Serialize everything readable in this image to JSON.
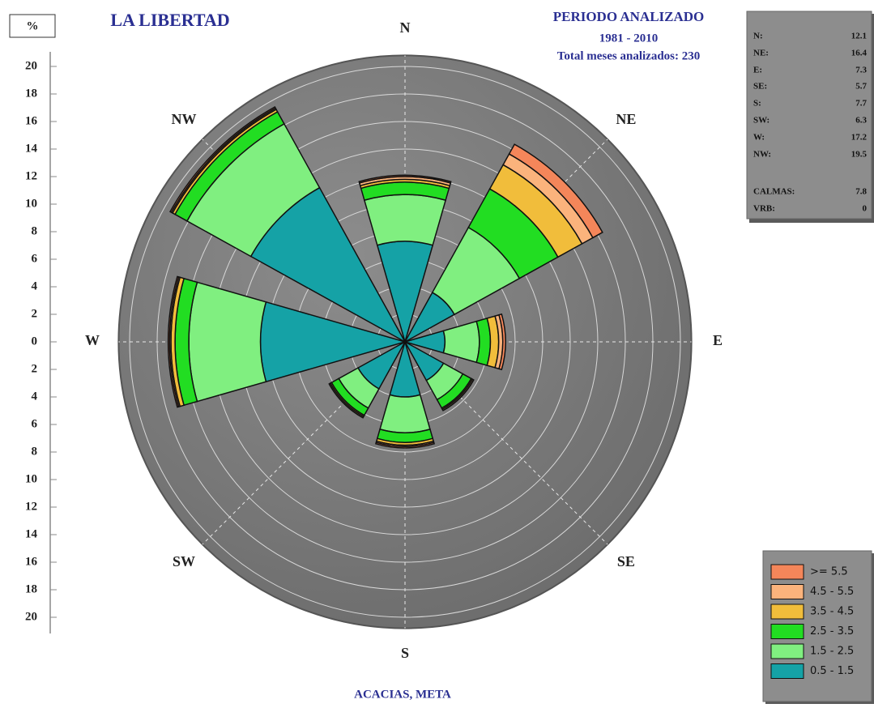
{
  "chart_data": {
    "type": "windrose",
    "unit_label": "%",
    "title": "LA LIBERTAD",
    "period_title": "PERIODO ANALIZADO",
    "period": "1981 - 2010",
    "months_note": "Total meses analizados: 230",
    "footer": "ACACIAS, META",
    "categories": [
      "N",
      "NE",
      "E",
      "SE",
      "S",
      "SW",
      "W",
      "NW"
    ],
    "angles": [
      0,
      45,
      90,
      135,
      180,
      225,
      270,
      315
    ],
    "series": [
      {
        "name": "0.5 - 1.5",
        "color": "#15a2a6",
        "values": [
          7.3,
          4.1,
          2.9,
          3.2,
          4.0,
          3.9,
          10.5,
          12.8
        ]
      },
      {
        "name": "1.5 - 2.5",
        "color": "#80ef80",
        "values": [
          3.4,
          5.4,
          2.5,
          1.6,
          2.6,
          1.6,
          5.2,
          5.3
        ]
      },
      {
        "name": "2.5 - 3.5",
        "color": "#22dd22",
        "values": [
          0.9,
          3.2,
          0.8,
          0.7,
          0.7,
          0.6,
          1.0,
          1.0
        ]
      },
      {
        "name": "3.5 - 4.5",
        "color": "#f1bd3b",
        "values": [
          0.2,
          2.0,
          0.6,
          0.1,
          0.2,
          0.1,
          0.3,
          0.2
        ]
      },
      {
        "name": "4.5 - 5.5",
        "color": "#fbb37c",
        "values": [
          0.2,
          0.9,
          0.3,
          0.1,
          0.1,
          0.1,
          0.1,
          0.1
        ]
      },
      {
        "name": ">= 5.5",
        "color": "#f4865a",
        "values": [
          0.1,
          0.8,
          0.2,
          0.0,
          0.1,
          0.0,
          0.1,
          0.1
        ]
      }
    ],
    "rlim": [
      0,
      20.8
    ],
    "rticks": [
      2,
      4,
      6,
      8,
      10,
      12,
      14,
      16,
      18,
      20
    ],
    "ylim": [
      -20,
      20
    ],
    "yticks": [
      20,
      18,
      16,
      14,
      12,
      10,
      8,
      6,
      4,
      2,
      0,
      {
        "value": -2,
        "label": "2"
      },
      {
        "value": -4,
        "label": "4"
      },
      {
        "value": -6,
        "label": "6"
      },
      {
        "value": -8,
        "label": "8"
      },
      {
        "value": -10,
        "label": "10"
      },
      {
        "value": -12,
        "label": "12"
      },
      {
        "value": -14,
        "label": "14"
      },
      {
        "value": -16,
        "label": "16"
      },
      {
        "value": -18,
        "label": "18"
      },
      {
        "value": -20,
        "label": "20"
      }
    ],
    "stats": [
      {
        "label": "N:",
        "value": 12.1
      },
      {
        "label": "NE:",
        "value": 16.4
      },
      {
        "label": "E:",
        "value": 7.3
      },
      {
        "label": "SE:",
        "value": 5.7
      },
      {
        "label": "S:",
        "value": 7.7
      },
      {
        "label": "SW:",
        "value": 6.3
      },
      {
        "label": "W:",
        "value": 17.2
      },
      {
        "label": "NW:",
        "value": 19.5
      },
      {
        "label": "CALMAS:",
        "value": 7.8
      },
      {
        "label": "VRB:",
        "value": 0.0
      }
    ]
  }
}
